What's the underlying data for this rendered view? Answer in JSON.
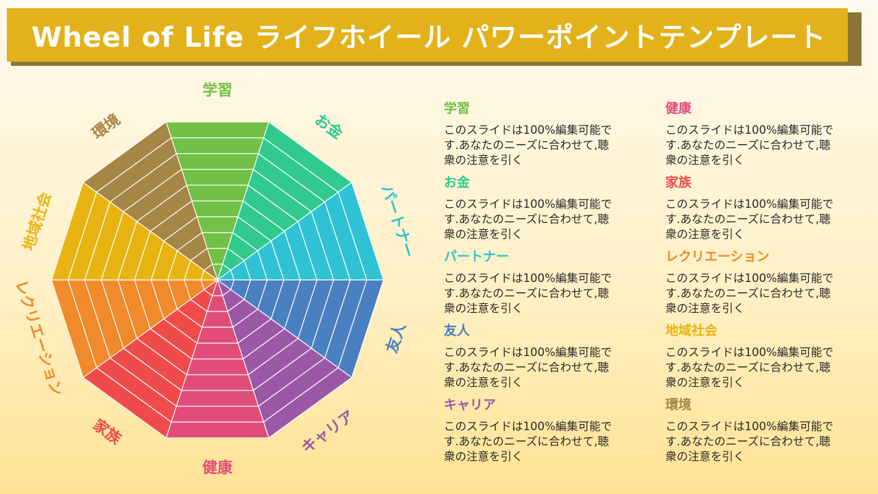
{
  "title": "Wheel of Life ライフホイール パワーポイントテンプレート",
  "colors": {
    "title_bar": "#e3b11a",
    "title_shadow": "#8d7538"
  },
  "wheel": {
    "rings": 10,
    "segments": [
      {
        "label": "学習",
        "color": "#72c045"
      },
      {
        "label": "お金",
        "color": "#31c98e"
      },
      {
        "label": "パートナー",
        "color": "#2fc2d4"
      },
      {
        "label": "友人",
        "color": "#4a7fc1"
      },
      {
        "label": "キャリア",
        "color": "#9b58a7"
      },
      {
        "label": "健康",
        "color": "#e04d7a"
      },
      {
        "label": "家族",
        "color": "#ef4b4b"
      },
      {
        "label": "レクリエーション",
        "color": "#f08a2a"
      },
      {
        "label": "地域社会",
        "color": "#e8b412"
      },
      {
        "label": "環境",
        "color": "#a68646"
      }
    ]
  },
  "descriptions": [
    {
      "title": "学習",
      "color": "#72c045",
      "text": "このスライドは100%編集可能です.あなたのニーズに合わせて,聴衆の注意を引く"
    },
    {
      "title": "お金",
      "color": "#31c98e",
      "text": "このスライドは100%編集可能です.あなたのニーズに合わせて,聴衆の注意を引く"
    },
    {
      "title": "パートナー",
      "color": "#2fc2d4",
      "text": "このスライドは100%編集可能です.あなたのニーズに合わせて,聴衆の注意を引く"
    },
    {
      "title": "友人",
      "color": "#4a7fc1",
      "text": "このスライドは100%編集可能です.あなたのニーズに合わせて,聴衆の注意を引く"
    },
    {
      "title": "キャリア",
      "color": "#9b58a7",
      "text": "このスライドは100%編集可能です.あなたのニーズに合わせて,聴衆の注意を引く"
    },
    {
      "title": "健康",
      "color": "#e04d7a",
      "text": "このスライドは100%編集可能です.あなたのニーズに合わせて,聴衆の注意を引く"
    },
    {
      "title": "家族",
      "color": "#ef4b4b",
      "text": "このスライドは100%編集可能です.あなたのニーズに合わせて,聴衆の注意を引く"
    },
    {
      "title": "レクリエーション",
      "color": "#f08a2a",
      "text": "このスライドは100%編集可能です.あなたのニーズに合わせて,聴衆の注意を引く"
    },
    {
      "title": "地域社会",
      "color": "#e8b412",
      "text": "このスライドは100%編集可能です.あなたのニーズに合わせて,聴衆の注意を引く"
    },
    {
      "title": "環境",
      "color": "#a68646",
      "text": "このスライドは100%編集可能です.あなたのニーズに合わせて,聴衆の注意を引く"
    }
  ]
}
